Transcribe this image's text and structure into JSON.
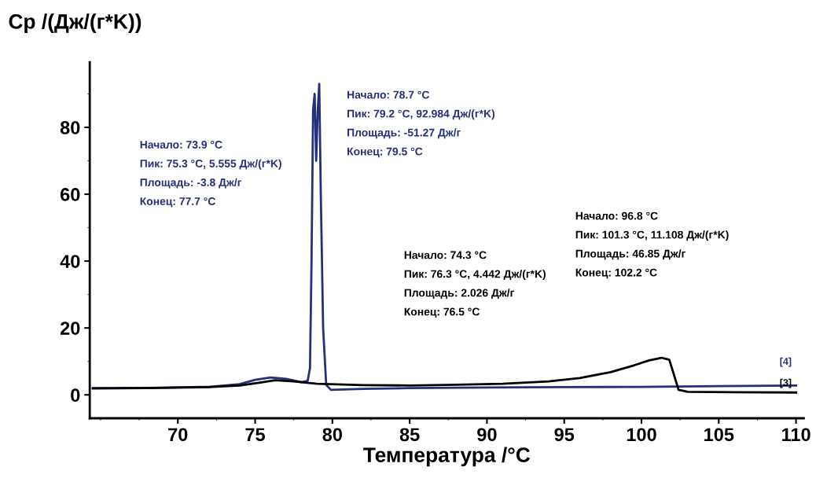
{
  "chart_data": {
    "type": "line",
    "ylabel": "Cp /(Дж/(г*K))",
    "xlabel": "Температура /°C",
    "xlim": [
      64.3,
      110.5
    ],
    "ylim": [
      -7,
      99.5
    ],
    "xticks": [
      70,
      75,
      80,
      85,
      90,
      95,
      100,
      105,
      110
    ],
    "yticks": [
      0,
      20,
      40,
      60,
      80
    ],
    "grid": false,
    "legend": false,
    "series": [
      {
        "name": "[4]",
        "color": "#25307a",
        "x": [
          64.5,
          68,
          72,
          74,
          75,
          76,
          77,
          78,
          78.4,
          78.55,
          78.65,
          78.75,
          78.85,
          78.95,
          79.05,
          79.15,
          79.25,
          79.4,
          79.6,
          79.9,
          82,
          85,
          90,
          95,
          100,
          105,
          110
        ],
        "values": [
          2,
          2.1,
          2.4,
          3.2,
          4.5,
          5.2,
          4.8,
          3.8,
          4.2,
          8,
          40,
          85,
          90,
          70,
          85,
          93,
          60,
          20,
          3,
          1.5,
          1.8,
          2,
          2.2,
          2.3,
          2.4,
          2.6,
          2.8
        ]
      },
      {
        "name": "[3]",
        "color": "#000000",
        "x": [
          64.5,
          68,
          72,
          74,
          75.5,
          76.3,
          77.5,
          79,
          82,
          85,
          88,
          91,
          94,
          96,
          98,
          99.5,
          100.5,
          101.3,
          101.8,
          102.1,
          102.4,
          103,
          106,
          110
        ],
        "values": [
          1.9,
          2,
          2.3,
          2.8,
          3.8,
          4.4,
          4,
          3.3,
          2.9,
          2.8,
          3,
          3.3,
          4,
          5,
          6.8,
          8.8,
          10.3,
          11.1,
          10.5,
          6,
          1.5,
          0.9,
          0.8,
          0.7
        ]
      }
    ],
    "annotations": [
      "Начало: 73.9 °C\nПик: 75.3 °C, 5.555 Дж/(г*K)\nПлощадь: -3.8 Дж/г\nКонец: 77.7 °C",
      "Начало: 78.7 °C\nПик: 79.2 °C, 92.984 Дж/(г*K)\nПлощадь: -51.27 Дж/г\nКонец: 79.5 °C",
      "Начало: 74.3 °C\nПик: 76.3 °C, 4.442 Дж/(г*K)\nПлощадь: 2.026 Дж/г\nКонец: 76.5 °C",
      "Начало: 96.8 °C\nПик: 101.3 °C, 11.108 Дж/(г*K)\nПлощадь: 46.85 Дж/г\nКонец: 102.2 °C"
    ]
  }
}
